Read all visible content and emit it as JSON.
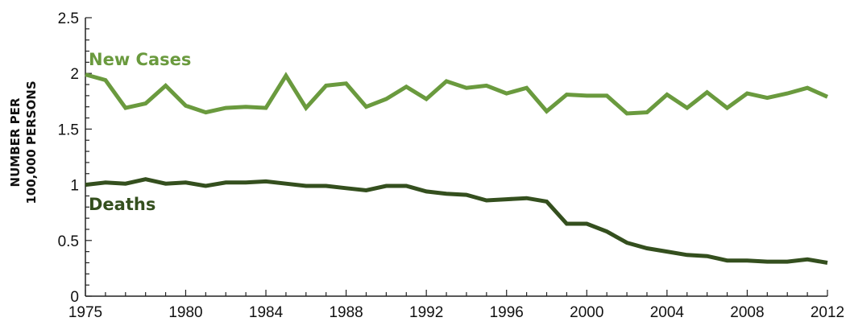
{
  "chart_data": {
    "type": "line",
    "ylabel": [
      "NUMBER PER",
      "100,000 PERSONS"
    ],
    "ylim": [
      0,
      2.5
    ],
    "xlim": [
      1975,
      2012
    ],
    "yticks": [
      0,
      0.5,
      1,
      1.5,
      2,
      2.5
    ],
    "ytick_labels": [
      "0",
      "0.5",
      "1",
      "1.5",
      "2",
      "2.5"
    ],
    "xticks": [
      1975,
      1980,
      1984,
      1988,
      1992,
      1996,
      2000,
      2004,
      2008,
      2012
    ],
    "xtick_labels": [
      "1975",
      "1980",
      "1984",
      "1988",
      "1992",
      "1996",
      "2000",
      "2004",
      "2008",
      "2012"
    ],
    "grid": false,
    "legend": "inline labels",
    "x": [
      1975,
      1976,
      1977,
      1978,
      1979,
      1980,
      1981,
      1982,
      1983,
      1984,
      1985,
      1986,
      1987,
      1988,
      1989,
      1990,
      1991,
      1992,
      1993,
      1994,
      1995,
      1996,
      1997,
      1998,
      1999,
      2000,
      2001,
      2002,
      2003,
      2004,
      2005,
      2006,
      2007,
      2008,
      2009,
      2010,
      2011,
      2012
    ],
    "series": [
      {
        "name": "New Cases",
        "color": "#6a9a3e",
        "values": [
          1.99,
          1.94,
          1.69,
          1.73,
          1.89,
          1.71,
          1.65,
          1.69,
          1.7,
          1.69,
          1.98,
          1.69,
          1.89,
          1.91,
          1.7,
          1.77,
          1.88,
          1.77,
          1.93,
          1.87,
          1.89,
          1.82,
          1.87,
          1.66,
          1.81,
          1.8,
          1.8,
          1.64,
          1.65,
          1.81,
          1.69,
          1.83,
          1.69,
          1.82,
          1.78,
          1.82,
          1.87,
          1.79
        ]
      },
      {
        "name": "Deaths",
        "color": "#344f1e",
        "values": [
          1.0,
          1.02,
          1.01,
          1.05,
          1.01,
          1.02,
          0.99,
          1.02,
          1.02,
          1.03,
          1.01,
          0.99,
          0.99,
          0.97,
          0.95,
          0.99,
          0.99,
          0.94,
          0.92,
          0.91,
          0.86,
          0.87,
          0.88,
          0.85,
          0.65,
          0.65,
          0.58,
          0.48,
          0.43,
          0.4,
          0.37,
          0.36,
          0.32,
          0.32,
          0.31,
          0.31,
          0.33,
          0.3
        ]
      }
    ]
  }
}
